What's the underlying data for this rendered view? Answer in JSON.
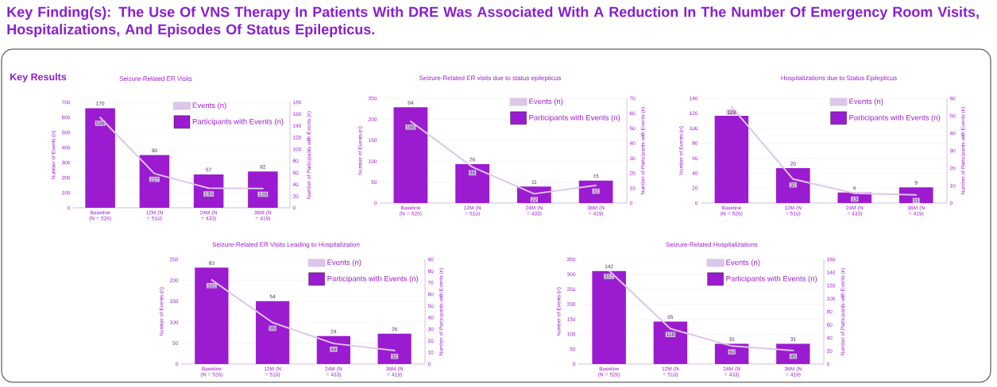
{
  "chart_data": [
    {
      "type": "other",
      "title": "Key Finding(s): The Use Of VNS Therapy In Patients With DRE Was Associated With A Reduction In The Number Of Emergency Room Visits, Hospitalizations, And Episodes Of Status Epilepticus.",
      "subtitle": "Key Results"
    },
    {
      "type": "bar",
      "title": "Seizure-Related ER Visits",
      "categories": [
        "Baseline (N = 526)",
        "12M (N = 510)",
        "24M (N = 433)",
        "36M (N = 419)"
      ],
      "ylabel": "Number of Events (n)",
      "y2label": "Number of Participants with Events (n)",
      "ylim": [
        0,
        700
      ],
      "yticks": [
        0,
        100,
        200,
        300,
        400,
        500,
        600,
        700
      ],
      "y2lim": [
        0,
        180
      ],
      "y2ticks": [
        0,
        20,
        40,
        60,
        80,
        100,
        120,
        140,
        160,
        180
      ],
      "grid": "y",
      "legend": "top right",
      "data_labels": true,
      "series": [
        {
          "name": "Events (n)",
          "type": "line",
          "color": "#dcc6ea",
          "values": [
            599,
            227,
            130,
            128
          ]
        },
        {
          "name": "Participants with Events (n)",
          "type": "bar",
          "axis": "y2",
          "color": "#9b1bd0",
          "values": [
            170,
            90,
            57,
            62
          ]
        }
      ]
    },
    {
      "type": "bar",
      "title": "Seizure-Related ER visits due to status epilepticus",
      "categories": [
        "Baseline (N = 526)",
        "12M (N = 510)",
        "24M (N = 433)",
        "36M (N = 419)"
      ],
      "ylabel": "Number of Events (n)",
      "y2label": "Number of Participants with Events (n)",
      "ylim": [
        0,
        250
      ],
      "yticks": [
        0,
        50,
        100,
        150,
        200,
        250
      ],
      "y2lim": [
        0,
        70
      ],
      "y2ticks": [
        0,
        10,
        20,
        30,
        40,
        50,
        60,
        70
      ],
      "grid": "y",
      "legend": "top right",
      "data_labels": true,
      "series": [
        {
          "name": "Events (n)",
          "type": "line",
          "color": "#dcc6ea",
          "values": [
            195,
            86,
            22,
            42
          ]
        },
        {
          "name": "Participants with Events (n)",
          "type": "bar",
          "axis": "y2",
          "color": "#9b1bd0",
          "values": [
            64,
            26,
            11,
            15
          ]
        }
      ]
    },
    {
      "type": "bar",
      "title": "Hospitalizations due to Status Epilepticus",
      "categories": [
        "Baseline (N = 526)",
        "12M (N = 510)",
        "24M (N = 433)",
        "36M (N = 419)"
      ],
      "ylabel": "Number of Events (n)",
      "y2label": "Number of Participants with Events (n)",
      "ylim": [
        0,
        140
      ],
      "yticks": [
        0,
        20,
        40,
        60,
        80,
        100,
        120,
        140
      ],
      "y2lim": [
        0,
        60
      ],
      "y2ticks": [
        0,
        10,
        20,
        30,
        40,
        50,
        60
      ],
      "grid": "y",
      "legend": "top right",
      "data_labels": true,
      "series": [
        {
          "name": "Events (n)",
          "type": "line",
          "color": "#dcc6ea",
          "values": [
            129,
            32,
            13,
            11
          ]
        },
        {
          "name": "Participants with Events (n)",
          "type": "bar",
          "axis": "y2",
          "color": "#9b1bd0",
          "values": [
            50,
            20,
            6,
            9
          ]
        }
      ]
    },
    {
      "type": "bar",
      "title": "Seizure-Related ER Visits Leading to Hospitalization",
      "categories": [
        "Baseline (N = 526)",
        "12M (N = 510)",
        "24M (N = 433)",
        "36M (N = 419)"
      ],
      "ylabel": "Number of Events (n)",
      "y2label": "Number of Participants with Events (n)",
      "ylim": [
        0,
        250
      ],
      "yticks": [
        0,
        50,
        100,
        150,
        200,
        250
      ],
      "y2lim": [
        0,
        90
      ],
      "y2ticks": [
        0,
        10,
        20,
        30,
        40,
        50,
        60,
        70,
        80,
        90
      ],
      "grid": "y",
      "legend": "top right",
      "data_labels": true,
      "series": [
        {
          "name": "Events (n)",
          "type": "line",
          "color": "#dcc6ea",
          "values": [
            201,
            99,
            49,
            32
          ]
        },
        {
          "name": "Participants with Events (n)",
          "type": "bar",
          "axis": "y2",
          "color": "#9b1bd0",
          "values": [
            83,
            54,
            24,
            26
          ]
        }
      ]
    },
    {
      "type": "bar",
      "title": "Seizure-Related Hospitalizations",
      "categories": [
        "Baseline (N = 526)",
        "12M (N = 510)",
        "24M (N = 433)",
        "36M (N = 419)"
      ],
      "ylabel": "Number of Events (n)",
      "y2label": "Number of Participants with Events (n)",
      "ylim": [
        0,
        350
      ],
      "yticks": [
        0,
        50,
        100,
        150,
        200,
        250,
        300,
        350
      ],
      "y2lim": [
        0,
        160
      ],
      "y2ticks": [
        0,
        20,
        40,
        60,
        80,
        100,
        120,
        140,
        160
      ],
      "grid": "y",
      "legend": "top right",
      "data_labels": true,
      "series": [
        {
          "name": "Events (n)",
          "type": "line",
          "color": "#dcc6ea",
          "values": [
            312,
            118,
            60,
            45
          ]
        },
        {
          "name": "Participants with Events (n)",
          "type": "bar",
          "axis": "y2",
          "color": "#9b1bd0",
          "values": [
            142,
            65,
            31,
            31
          ]
        }
      ]
    }
  ]
}
